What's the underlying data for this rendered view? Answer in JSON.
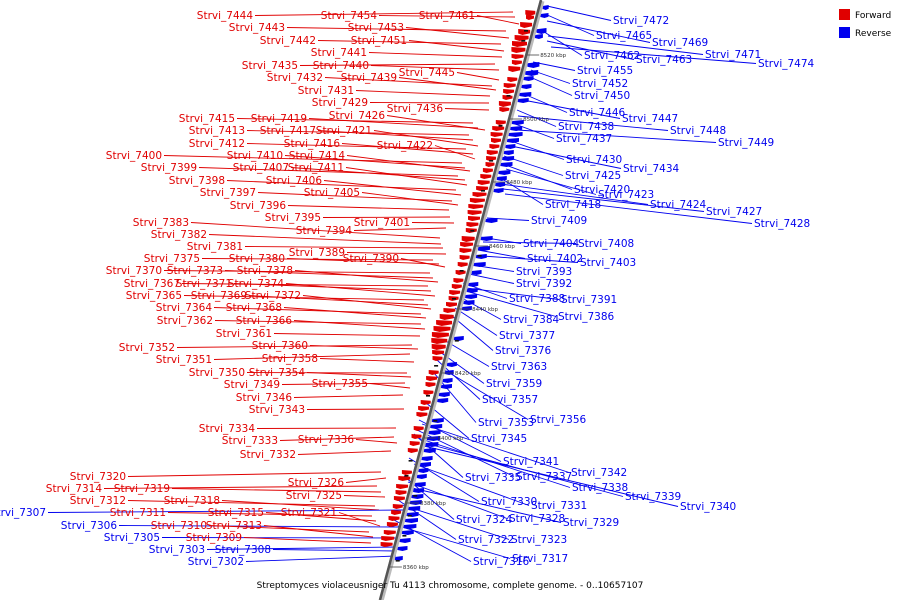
{
  "caption": "Streptomyces violaceusniger Tu 4113 chromosome, complete genome. - 0..10657107",
  "legend": {
    "forward": {
      "label": "Forward",
      "color": "#e00000"
    },
    "reverse": {
      "label": "Reverse",
      "color": "#0000ee"
    }
  },
  "scale_ticks": [
    "8520 kbp",
    "8500 kbp",
    "8480 kbp",
    "8460 kbp",
    "8440 kbp",
    "8420 kbp",
    "8400 kbp",
    "8380 kbp",
    "8360 kbp"
  ],
  "left_labels": [
    {
      "name": "Strvi_7444",
      "strand": "forward"
    },
    {
      "name": "Strvi_7454",
      "strand": "forward"
    },
    {
      "name": "Strvi_7461",
      "strand": "forward"
    },
    {
      "name": "Strvi_7443",
      "strand": "forward"
    },
    {
      "name": "Strvi_7453",
      "strand": "forward"
    },
    {
      "name": "Strvi_7442",
      "strand": "forward"
    },
    {
      "name": "Strvi_7451",
      "strand": "forward"
    },
    {
      "name": "Strvi_7441",
      "strand": "forward"
    },
    {
      "name": "Strvi_7435",
      "strand": "forward"
    },
    {
      "name": "Strvi_7440",
      "strand": "forward"
    },
    {
      "name": "Strvi_7445",
      "strand": "forward"
    },
    {
      "name": "Strvi_7432",
      "strand": "forward"
    },
    {
      "name": "Strvi_7439",
      "strand": "forward"
    },
    {
      "name": "Strvi_7431",
      "strand": "forward"
    },
    {
      "name": "Strvi_7429",
      "strand": "forward"
    },
    {
      "name": "Strvi_7436",
      "strand": "forward"
    },
    {
      "name": "Strvi_7415",
      "strand": "forward"
    },
    {
      "name": "Strvi_7419",
      "strand": "forward"
    },
    {
      "name": "Strvi_7426",
      "strand": "forward"
    },
    {
      "name": "Strvi_7413",
      "strand": "forward"
    },
    {
      "name": "Strvi_7417",
      "strand": "forward"
    },
    {
      "name": "Strvi_7421",
      "strand": "forward"
    },
    {
      "name": "Strvi_7412",
      "strand": "forward"
    },
    {
      "name": "Strvi_7416",
      "strand": "forward"
    },
    {
      "name": "Strvi_7422",
      "strand": "forward"
    },
    {
      "name": "Strvi_7400",
      "strand": "forward"
    },
    {
      "name": "Strvi_7410",
      "strand": "forward"
    },
    {
      "name": "Strvi_7414",
      "strand": "forward"
    },
    {
      "name": "Strvi_7399",
      "strand": "forward"
    },
    {
      "name": "Strvi_7407",
      "strand": "forward"
    },
    {
      "name": "Strvi_7411",
      "strand": "forward"
    },
    {
      "name": "Strvi_7398",
      "strand": "forward"
    },
    {
      "name": "Strvi_7406",
      "strand": "forward"
    },
    {
      "name": "Strvi_7397",
      "strand": "forward"
    },
    {
      "name": "Strvi_7405",
      "strand": "forward"
    },
    {
      "name": "Strvi_7396",
      "strand": "forward"
    },
    {
      "name": "Strvi_7395",
      "strand": "forward"
    },
    {
      "name": "Strvi_7401",
      "strand": "forward"
    },
    {
      "name": "Strvi_7394",
      "strand": "forward"
    },
    {
      "name": "Strvi_7383",
      "strand": "forward"
    },
    {
      "name": "Strvi_7382",
      "strand": "forward"
    },
    {
      "name": "Strvi_7381",
      "strand": "forward"
    },
    {
      "name": "Strvi_7389",
      "strand": "forward"
    },
    {
      "name": "Strvi_7375",
      "strand": "forward"
    },
    {
      "name": "Strvi_7380",
      "strand": "forward"
    },
    {
      "name": "Strvi_7390",
      "strand": "forward"
    },
    {
      "name": "Strvi_7370",
      "strand": "forward"
    },
    {
      "name": "Strvi_7373",
      "strand": "forward"
    },
    {
      "name": "Strvi_7378",
      "strand": "forward"
    },
    {
      "name": "Strvi_7367",
      "strand": "forward"
    },
    {
      "name": "Strvi_7371",
      "strand": "forward"
    },
    {
      "name": "Strvi_7374",
      "strand": "forward"
    },
    {
      "name": "Strvi_7365",
      "strand": "forward"
    },
    {
      "name": "Strvi_7369",
      "strand": "forward"
    },
    {
      "name": "Strvi_7372",
      "strand": "forward"
    },
    {
      "name": "Strvi_7364",
      "strand": "forward"
    },
    {
      "name": "Strvi_7368",
      "strand": "forward"
    },
    {
      "name": "Strvi_7362",
      "strand": "forward"
    },
    {
      "name": "Strvi_7366",
      "strand": "forward"
    },
    {
      "name": "Strvi_7361",
      "strand": "forward"
    },
    {
      "name": "Strvi_7352",
      "strand": "forward"
    },
    {
      "name": "Strvi_7360",
      "strand": "forward"
    },
    {
      "name": "Strvi_7351",
      "strand": "forward"
    },
    {
      "name": "Strvi_7358",
      "strand": "forward"
    },
    {
      "name": "Strvi_7350",
      "strand": "forward"
    },
    {
      "name": "Strvi_7354",
      "strand": "forward"
    },
    {
      "name": "Strvi_7349",
      "strand": "forward"
    },
    {
      "name": "Strvi_7355",
      "strand": "forward"
    },
    {
      "name": "Strvi_7346",
      "strand": "forward"
    },
    {
      "name": "Strvi_7343",
      "strand": "forward"
    },
    {
      "name": "Strvi_7334",
      "strand": "forward"
    },
    {
      "name": "Strvi_7333",
      "strand": "forward"
    },
    {
      "name": "Strvi_7336",
      "strand": "forward"
    },
    {
      "name": "Strvi_7332",
      "strand": "forward"
    },
    {
      "name": "Strvi_7320",
      "strand": "forward"
    },
    {
      "name": "Strvi_7326",
      "strand": "forward"
    },
    {
      "name": "Strvi_7314",
      "strand": "forward"
    },
    {
      "name": "Strvi_7319",
      "strand": "forward"
    },
    {
      "name": "Strvi_7325",
      "strand": "forward"
    },
    {
      "name": "Strvi_7312",
      "strand": "forward"
    },
    {
      "name": "Strvi_7318",
      "strand": "forward"
    },
    {
      "name": "Strvi_7307",
      "strand": "reverse"
    },
    {
      "name": "Strvi_7311",
      "strand": "forward"
    },
    {
      "name": "Strvi_7315",
      "strand": "forward"
    },
    {
      "name": "Strvi_7321",
      "strand": "forward"
    },
    {
      "name": "Strvi_7306",
      "strand": "reverse"
    },
    {
      "name": "Strvi_7310",
      "strand": "forward"
    },
    {
      "name": "Strvi_7313",
      "strand": "forward"
    },
    {
      "name": "Strvi_7305",
      "strand": "reverse"
    },
    {
      "name": "Strvi_7309",
      "strand": "forward"
    },
    {
      "name": "Strvi_7303",
      "strand": "reverse"
    },
    {
      "name": "Strvi_7308",
      "strand": "reverse"
    },
    {
      "name": "Strvi_7302",
      "strand": "reverse"
    }
  ],
  "right_labels": [
    {
      "name": "Strvi_7472",
      "strand": "reverse"
    },
    {
      "name": "Strvi_7465",
      "strand": "reverse"
    },
    {
      "name": "Strvi_7469",
      "strand": "reverse"
    },
    {
      "name": "Strvi_7462",
      "strand": "reverse"
    },
    {
      "name": "Strvi_7471",
      "strand": "reverse"
    },
    {
      "name": "Strvi_7463",
      "strand": "reverse"
    },
    {
      "name": "Strvi_7474",
      "strand": "reverse"
    },
    {
      "name": "Strvi_7455",
      "strand": "reverse"
    },
    {
      "name": "Strvi_7452",
      "strand": "reverse"
    },
    {
      "name": "Strvi_7450",
      "strand": "reverse"
    },
    {
      "name": "Strvi_7446",
      "strand": "reverse"
    },
    {
      "name": "Strvi_7447",
      "strand": "reverse"
    },
    {
      "name": "Strvi_7438",
      "strand": "reverse"
    },
    {
      "name": "Strvi_7448",
      "strand": "reverse"
    },
    {
      "name": "Strvi_7437",
      "strand": "reverse"
    },
    {
      "name": "Strvi_7449",
      "strand": "reverse"
    },
    {
      "name": "Strvi_7430",
      "strand": "reverse"
    },
    {
      "name": "Strvi_7434",
      "strand": "reverse"
    },
    {
      "name": "Strvi_7425",
      "strand": "reverse"
    },
    {
      "name": "Strvi_7420",
      "strand": "reverse"
    },
    {
      "name": "Strvi_7423",
      "strand": "reverse"
    },
    {
      "name": "Strvi_7418",
      "strand": "reverse"
    },
    {
      "name": "Strvi_7424",
      "strand": "reverse"
    },
    {
      "name": "Strvi_7427",
      "strand": "reverse"
    },
    {
      "name": "Strvi_7428",
      "strand": "reverse"
    },
    {
      "name": "Strvi_7409",
      "strand": "reverse"
    },
    {
      "name": "Strvi_7404",
      "strand": "reverse"
    },
    {
      "name": "Strvi_7408",
      "strand": "reverse"
    },
    {
      "name": "Strvi_7402",
      "strand": "reverse"
    },
    {
      "name": "Strvi_7403",
      "strand": "reverse"
    },
    {
      "name": "Strvi_7393",
      "strand": "reverse"
    },
    {
      "name": "Strvi_7392",
      "strand": "reverse"
    },
    {
      "name": "Strvi_7388",
      "strand": "reverse"
    },
    {
      "name": "Strvi_7391",
      "strand": "reverse"
    },
    {
      "name": "Strvi_7386",
      "strand": "reverse"
    },
    {
      "name": "Strvi_7384",
      "strand": "reverse"
    },
    {
      "name": "Strvi_7377",
      "strand": "reverse"
    },
    {
      "name": "Strvi_7376",
      "strand": "reverse"
    },
    {
      "name": "Strvi_7363",
      "strand": "reverse"
    },
    {
      "name": "Strvi_7359",
      "strand": "reverse"
    },
    {
      "name": "Strvi_7357",
      "strand": "reverse"
    },
    {
      "name": "Strvi_7356",
      "strand": "reverse"
    },
    {
      "name": "Strvi_7353",
      "strand": "reverse"
    },
    {
      "name": "Strvi_7345",
      "strand": "reverse"
    },
    {
      "name": "Strvi_7341",
      "strand": "reverse"
    },
    {
      "name": "Strvi_7342",
      "strand": "reverse"
    },
    {
      "name": "Strvi_7337",
      "strand": "reverse"
    },
    {
      "name": "Strvi_7335",
      "strand": "reverse"
    },
    {
      "name": "Strvi_7338",
      "strand": "reverse"
    },
    {
      "name": "Strvi_7339",
      "strand": "reverse"
    },
    {
      "name": "Strvi_7340",
      "strand": "reverse"
    },
    {
      "name": "Strvi_7330",
      "strand": "reverse"
    },
    {
      "name": "Strvi_7331",
      "strand": "reverse"
    },
    {
      "name": "Strvi_7324",
      "strand": "reverse"
    },
    {
      "name": "Strvi_7328",
      "strand": "reverse"
    },
    {
      "name": "Strvi_7329",
      "strand": "reverse"
    },
    {
      "name": "Strvi_7322",
      "strand": "reverse"
    },
    {
      "name": "Strvi_7323",
      "strand": "reverse"
    },
    {
      "name": "Strvi_7316",
      "strand": "reverse"
    },
    {
      "name": "Strvi_7317",
      "strand": "reverse"
    }
  ]
}
